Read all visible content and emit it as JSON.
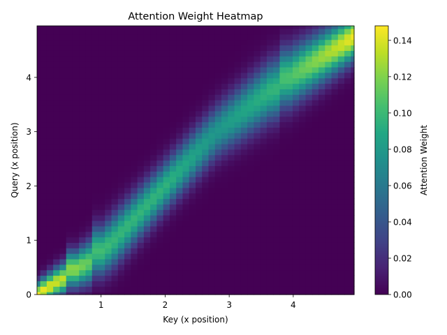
{
  "chart_data": {
    "type": "heatmap",
    "title": "Attention Weight Heatmap",
    "xlabel": "Key (x position)",
    "ylabel": "Query (x position)",
    "colorbar_label": "Attention Weight",
    "colormap": "viridis",
    "x_range": [
      0.0,
      4.95
    ],
    "y_range": [
      0.0,
      4.95
    ],
    "grid_size": 50,
    "x_ticks": [
      "1",
      "2",
      "3",
      "4"
    ],
    "y_ticks": [
      "0",
      "1",
      "2",
      "3",
      "4"
    ],
    "colorbar_ticks": [
      "0.00",
      "0.02",
      "0.04",
      "0.06",
      "0.08",
      "0.10",
      "0.12",
      "0.14"
    ],
    "value_range": [
      0.0,
      0.148
    ],
    "grid": false,
    "key_knots": [
      0.0,
      0.5,
      0.9,
      1.2,
      2.0,
      2.8,
      3.8,
      4.95
    ],
    "query_center_knots": [
      0.0,
      0.38,
      0.68,
      1.0,
      2.0,
      3.0,
      3.9,
      4.75
    ],
    "sharp_edges_x": [
      0.5,
      0.9,
      3.8
    ],
    "peak_by_key_knots": [
      0.148,
      0.13,
      0.105,
      0.098,
      0.096,
      0.078,
      0.1,
      0.145
    ],
    "width_by_key_knots": [
      0.22,
      0.28,
      0.4,
      0.45,
      0.42,
      0.45,
      0.52,
      0.4
    ]
  }
}
